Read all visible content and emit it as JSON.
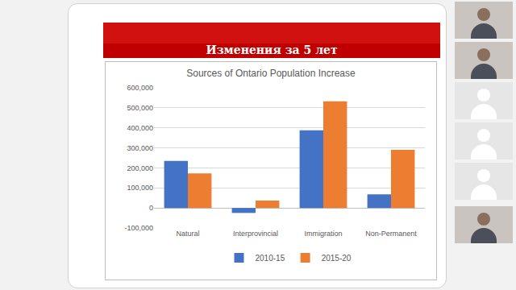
{
  "slide": {
    "heading": "Изменения за 5 лет"
  },
  "chart_data": {
    "type": "bar",
    "title": "Sources of Ontario Population Increase",
    "categories": [
      "Natural",
      "Interprovincial",
      "Immigration",
      "Non-Permanent"
    ],
    "series": [
      {
        "name": "2010-15",
        "color": "#4472c4",
        "values": [
          235000,
          -25000,
          388000,
          68000
        ]
      },
      {
        "name": "2015-20",
        "color": "#ed7d31",
        "values": [
          173000,
          37000,
          533000,
          290000
        ]
      }
    ],
    "ylim": [
      -100000,
      600000
    ],
    "yticks": [
      {
        "value": -100000,
        "label": "-100,000"
      },
      0,
      {
        "value": 100000,
        "label": "100,000"
      },
      {
        "value": 200000,
        "label": "200,000"
      },
      {
        "value": 300000,
        "label": "300,000"
      },
      {
        "value": 400000,
        "label": "400,000"
      },
      {
        "value": 500000,
        "label": "500,000"
      },
      {
        "value": 600000,
        "label": "600,000"
      }
    ],
    "grid": true,
    "legend": "bottom"
  }
}
